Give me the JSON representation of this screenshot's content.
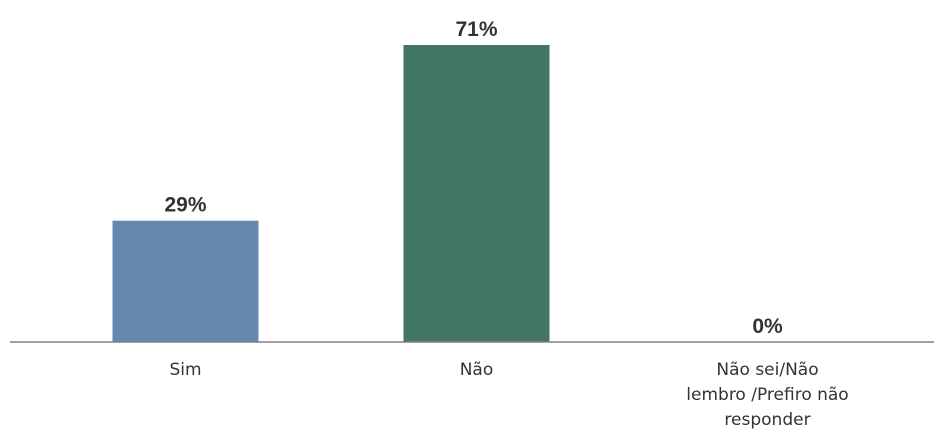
{
  "chart_data": {
    "type": "bar",
    "categories": [
      [
        "Sim"
      ],
      [
        "Não"
      ],
      [
        "Não sei/Não",
        "lembro /Prefiro não",
        "responder"
      ]
    ],
    "values": [
      29,
      71,
      0
    ],
    "data_labels": [
      "29%",
      "71%",
      "0%"
    ],
    "colors": [
      "#6687b0",
      "#427563",
      "#6687b0"
    ],
    "axis_color": "#808080",
    "ylim": [
      0,
      71
    ],
    "grid": false,
    "legend": "none"
  }
}
